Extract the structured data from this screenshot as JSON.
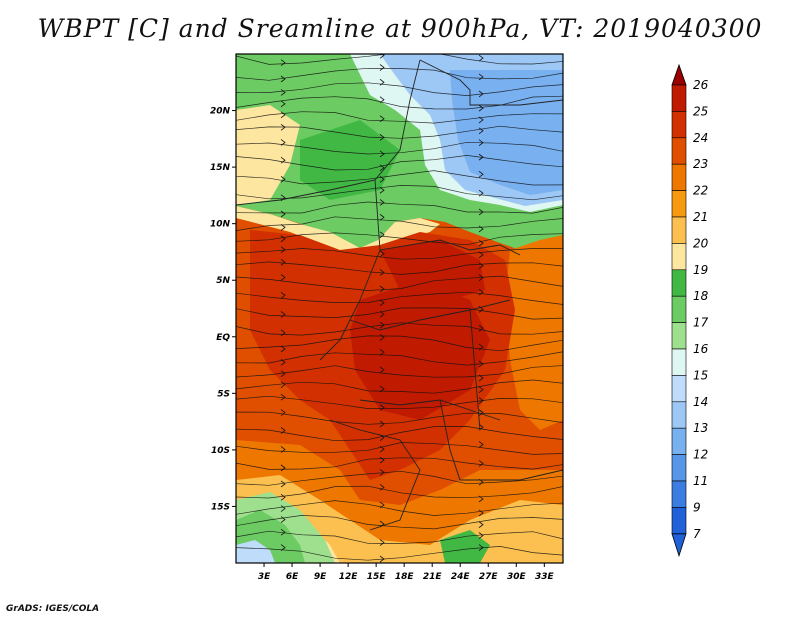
{
  "title": "WBPT [C] and Sreamline at 900hPa, VT: 2019040300",
  "credit": "GrADS: IGES/COLA",
  "map": {
    "lon_labels": [
      "3E",
      "6E",
      "9E",
      "12E",
      "15E",
      "18E",
      "21E",
      "24E",
      "27E",
      "30E",
      "33E"
    ],
    "lat_labels": [
      "20N",
      "15N",
      "10N",
      "5N",
      "EQ",
      "5S",
      "10S",
      "15S"
    ],
    "lon_range": [
      0,
      35
    ],
    "lat_range": [
      -20,
      25
    ]
  },
  "colorbar": {
    "levels": [
      "26",
      "25",
      "24",
      "23",
      "22",
      "21",
      "20",
      "19",
      "18",
      "17",
      "16",
      "15",
      "14",
      "13",
      "12",
      "11",
      "9",
      "7"
    ],
    "colors": {
      "c26": "#9a0000",
      "c25": "#c01a00",
      "c24": "#d23000",
      "c23": "#e04e00",
      "c22": "#ee7700",
      "c21": "#f69a10",
      "c20": "#fbc050",
      "c19": "#fde6a0",
      "c18": "#41b844",
      "c17": "#6ccb62",
      "c16": "#9fe08e",
      "c15": "#dff7f2",
      "c14": "#bfdcfa",
      "c13": "#9dc8f6",
      "c12": "#78b0f0",
      "c11": "#5897e8",
      "c9": "#3b7de0",
      "c7": "#2060d8"
    }
  }
}
